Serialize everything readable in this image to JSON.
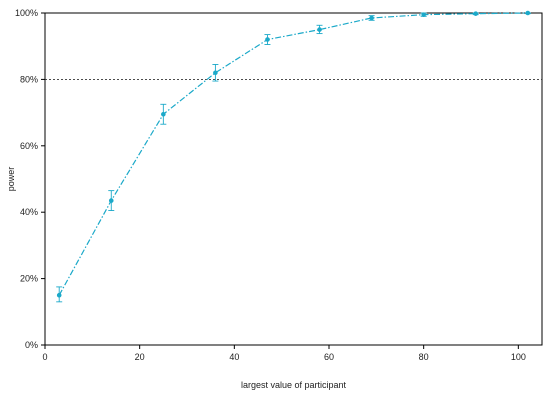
{
  "chart_data": {
    "type": "line",
    "xlabel": "largest value of participant",
    "ylabel": "power",
    "xlim": [
      0,
      105
    ],
    "ylim": [
      0,
      100
    ],
    "x_ticks": [
      0,
      20,
      40,
      60,
      80,
      100
    ],
    "y_ticks": [
      0,
      20,
      40,
      60,
      80,
      100
    ],
    "y_tick_labels": [
      "0%",
      "20%",
      "40%",
      "60%",
      "80%",
      "100%"
    ],
    "reference_line": {
      "y": 80,
      "style": "dotted"
    },
    "series": [
      {
        "color": "#1ba9c9",
        "line_style": "dash-dot",
        "marker": "circle",
        "points": [
          {
            "x": 3,
            "y": 15,
            "lower": 13,
            "upper": 17.5
          },
          {
            "x": 14,
            "y": 43.5,
            "lower": 40.5,
            "upper": 46.5
          },
          {
            "x": 25,
            "y": 69.5,
            "lower": 66.5,
            "upper": 72.5
          },
          {
            "x": 36,
            "y": 82,
            "lower": 79.5,
            "upper": 84.5
          },
          {
            "x": 47,
            "y": 92,
            "lower": 90.5,
            "upper": 93.5
          },
          {
            "x": 58,
            "y": 95,
            "lower": 93.8,
            "upper": 96.3
          },
          {
            "x": 69,
            "y": 98.5,
            "lower": 97.8,
            "upper": 99.2
          },
          {
            "x": 80,
            "y": 99.5,
            "lower": 99,
            "upper": 100
          },
          {
            "x": 91,
            "y": 99.8,
            "lower": 99.5,
            "upper": 100
          },
          {
            "x": 102,
            "y": 100,
            "lower": 99.8,
            "upper": 100
          }
        ]
      }
    ]
  }
}
